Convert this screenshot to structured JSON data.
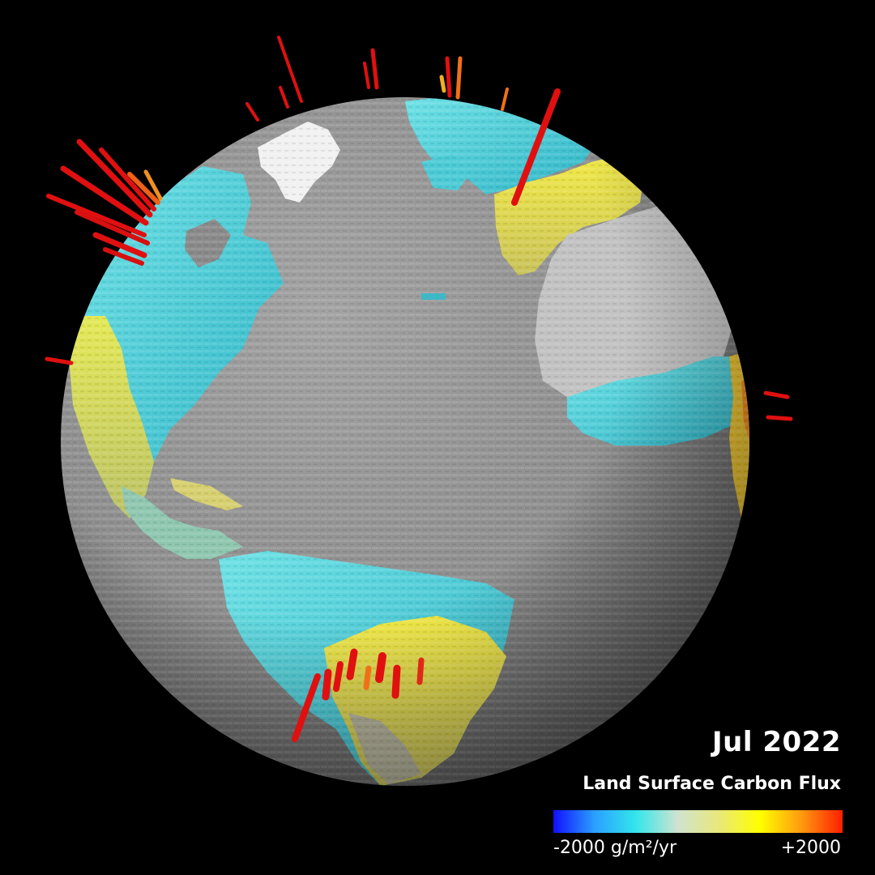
{
  "date_label": "Jul 2022",
  "title": "Land Surface Carbon Flux",
  "colorbar": {
    "min_label": "-2000 g/m²/yr",
    "max_label": "+2000",
    "stops": [
      "#1010ff",
      "#2aa0ff",
      "#33e6ea",
      "#cfe3d0",
      "#e8e87a",
      "#ffff00",
      "#ff9a10",
      "#ff1e00"
    ]
  },
  "colors": {
    "background": "#000000",
    "ocean": "#8f8f8f",
    "desert": "#bdbdbd",
    "ice": "#f4f4f4",
    "sink": "#3fd2dc",
    "neutral": "#d6d05a",
    "source": "#f2e21c",
    "emission": "#e01010"
  }
}
